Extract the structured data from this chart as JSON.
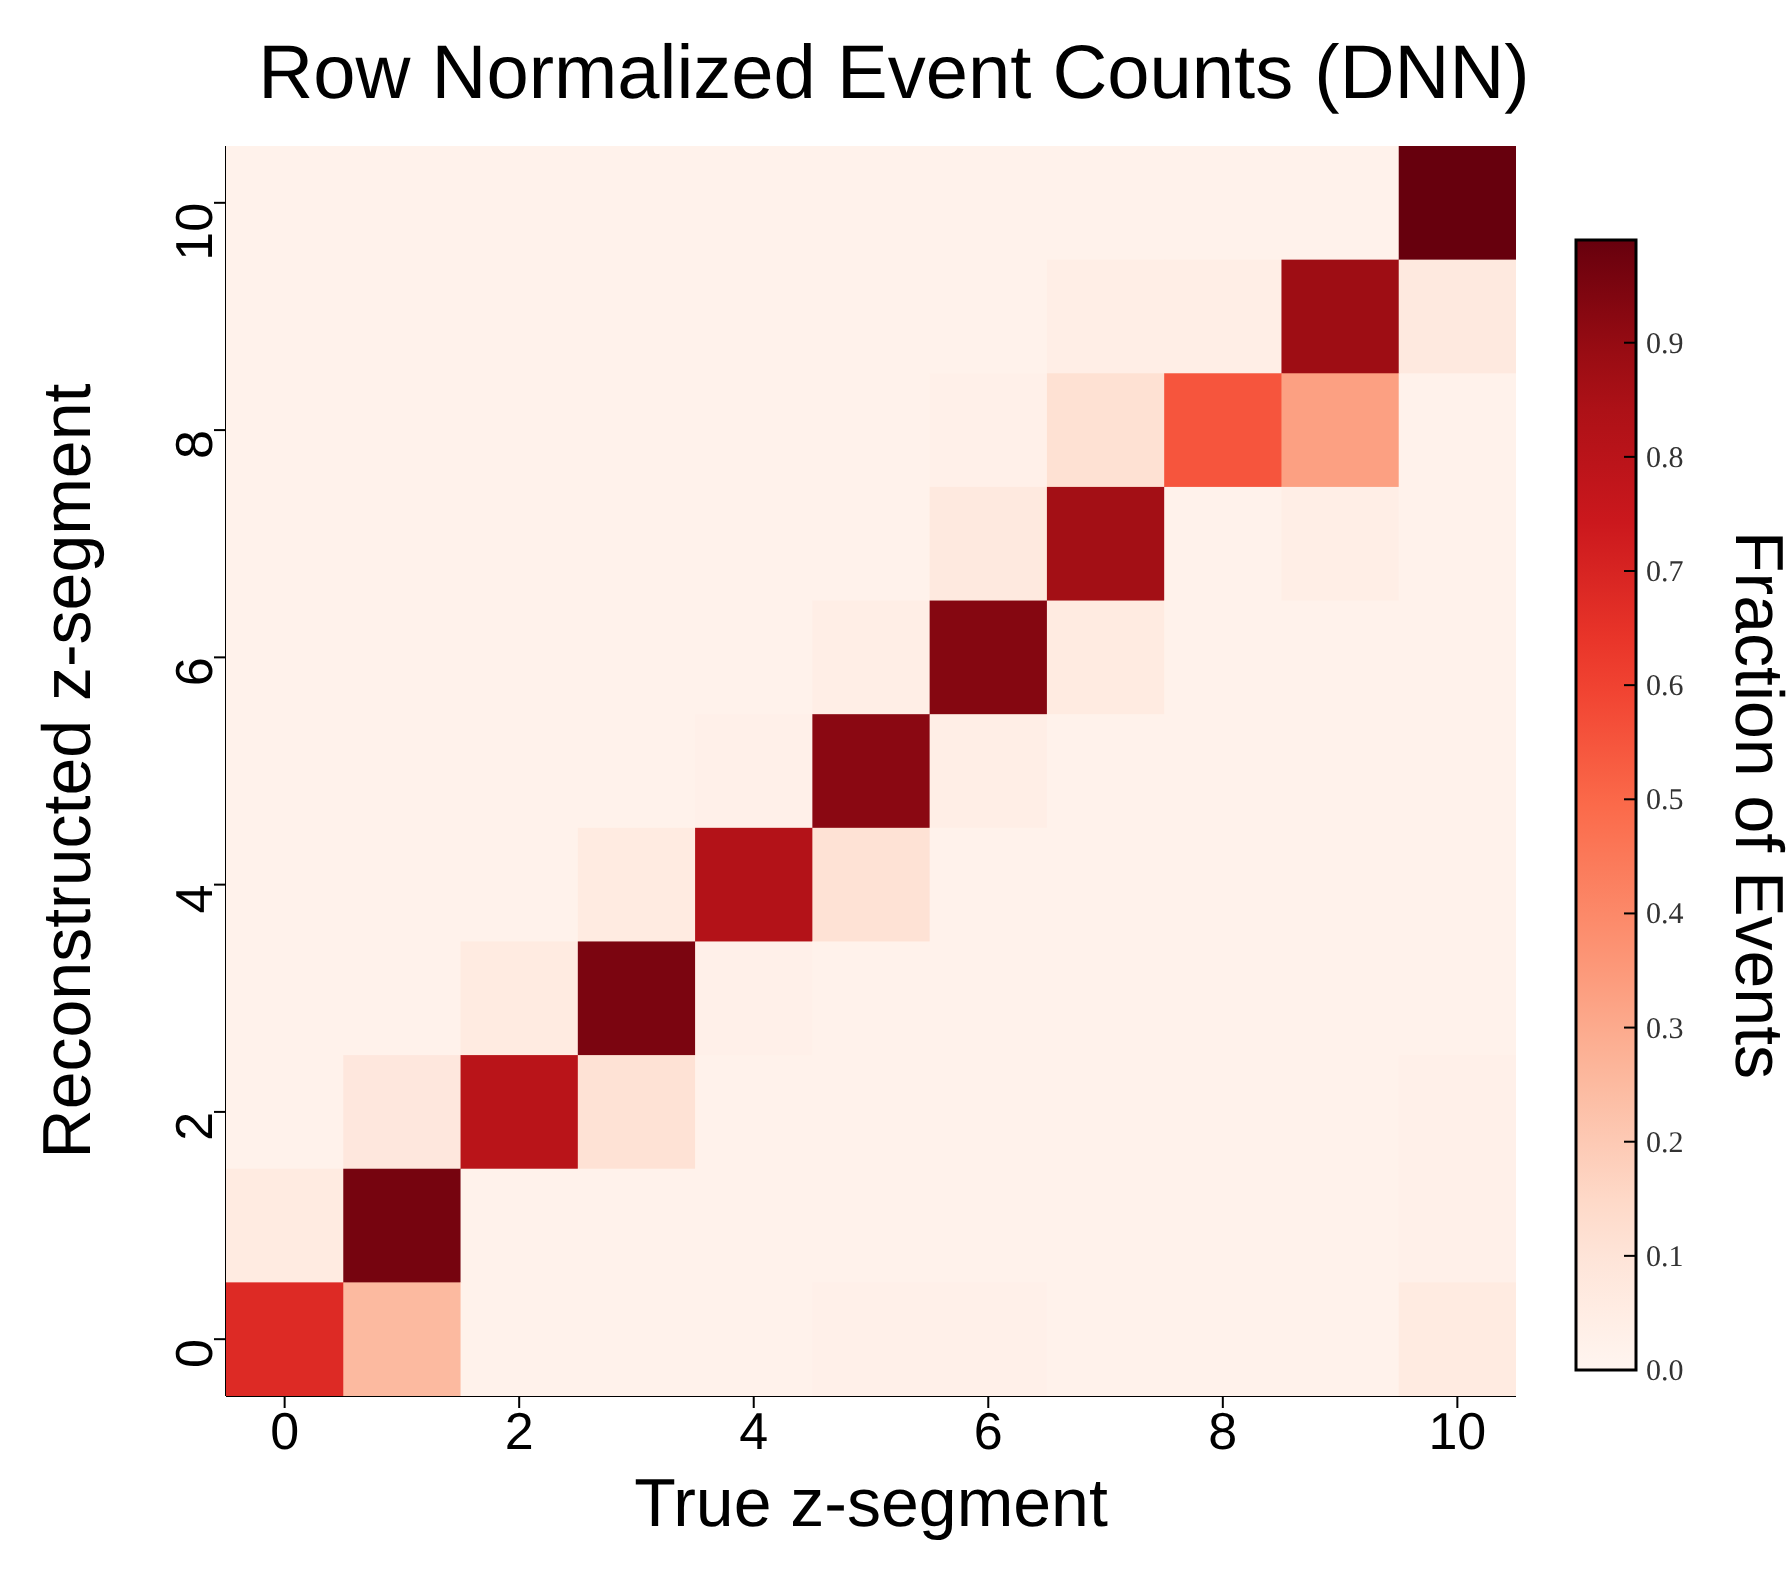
{
  "chart_data": {
    "type": "heatmap",
    "title": "Row Normalized Event Counts (DNN)",
    "xlabel": "True z-segment",
    "ylabel": "Reconstructed z-segment",
    "clabel": "Fraction of Events",
    "x": [
      0,
      1,
      2,
      3,
      4,
      5,
      6,
      7,
      8,
      9,
      10
    ],
    "xlim": [
      -0.5,
      10.5
    ],
    "xticks": [
      0,
      2,
      4,
      6,
      8,
      10
    ],
    "ylim": [
      -0.5,
      10.5
    ],
    "yticks": [
      0,
      2,
      4,
      6,
      8,
      10
    ],
    "clim": [
      0,
      0.99
    ],
    "cticks": [
      {
        "value": 0,
        "label": "0.0"
      },
      0.1,
      0.2,
      0.3,
      0.4,
      0.5,
      0.6,
      0.7,
      0.8,
      0.9
    ],
    "cells": [
      [
        0.02,
        0.02,
        0.02,
        0.02,
        0.02,
        0.02,
        0.02,
        0.02,
        0.02,
        0.02,
        0.99
      ],
      [
        0.02,
        0.02,
        0.02,
        0.02,
        0.02,
        0.02,
        0.02,
        0.04,
        0.04,
        0.88,
        0.07
      ],
      [
        0.02,
        0.02,
        0.02,
        0.02,
        0.02,
        0.02,
        0.03,
        0.12,
        0.55,
        0.33,
        0.02
      ],
      [
        0.02,
        0.02,
        0.02,
        0.02,
        0.02,
        0.02,
        0.07,
        0.87,
        0.02,
        0.04,
        0.02
      ],
      [
        0.02,
        0.02,
        0.02,
        0.02,
        0.02,
        0.04,
        0.93,
        0.06,
        0.02,
        0.02,
        0.02
      ],
      [
        0.02,
        0.02,
        0.02,
        0.02,
        0.03,
        0.92,
        0.04,
        0.02,
        0.02,
        0.02,
        0.02
      ],
      [
        0.02,
        0.02,
        0.02,
        0.06,
        0.82,
        0.11,
        0.02,
        0.02,
        0.02,
        0.02,
        0.02
      ],
      [
        0.02,
        0.02,
        0.06,
        0.95,
        0.03,
        0.02,
        0.02,
        0.02,
        0.02,
        0.02,
        0.02
      ],
      [
        0.02,
        0.08,
        0.8,
        0.11,
        0.02,
        0.02,
        0.02,
        0.02,
        0.02,
        0.02,
        0.03
      ],
      [
        0.06,
        0.96,
        0.02,
        0.02,
        0.02,
        0.02,
        0.02,
        0.02,
        0.02,
        0.02,
        0.03
      ],
      [
        0.68,
        0.25,
        0.02,
        0.02,
        0.02,
        0.03,
        0.03,
        0.02,
        0.02,
        0.02,
        0.06
      ]
    ]
  }
}
